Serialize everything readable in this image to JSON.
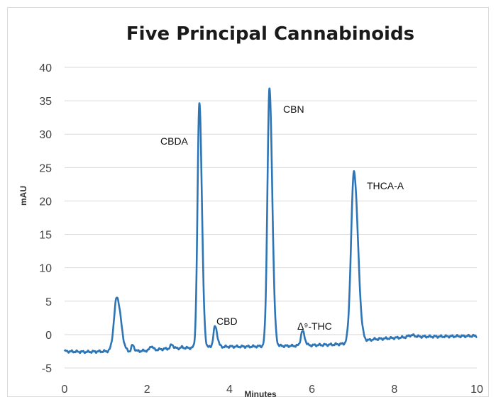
{
  "chart_data": {
    "type": "line",
    "title": "Five Principal Cannabinoids",
    "xlabel": "Minutes",
    "ylabel": "mAU",
    "xlim": [
      0,
      10
    ],
    "ylim": [
      -5,
      40
    ],
    "x_ticks": [
      0,
      2,
      4,
      6,
      8,
      10
    ],
    "y_ticks": [
      -5,
      0,
      5,
      10,
      15,
      20,
      25,
      30,
      35,
      40
    ],
    "grid": true,
    "series_color": "#2e75b6",
    "baseline": [
      [
        0,
        -2.5
      ],
      [
        0.5,
        -2.6
      ],
      [
        1.0,
        -2.5
      ],
      [
        1.4,
        -2.6
      ],
      [
        2.0,
        -2.4
      ],
      [
        2.5,
        -2.1
      ],
      [
        3.0,
        -2.0
      ],
      [
        3.5,
        -1.9
      ],
      [
        4.0,
        -1.8
      ],
      [
        4.5,
        -1.8
      ],
      [
        5.0,
        -1.7
      ],
      [
        5.5,
        -1.7
      ],
      [
        6.0,
        -1.6
      ],
      [
        6.5,
        -1.5
      ],
      [
        7.0,
        -1.3
      ],
      [
        7.5,
        -0.7
      ],
      [
        8.0,
        -0.5
      ],
      [
        8.5,
        -0.3
      ],
      [
        9.0,
        -0.3
      ],
      [
        10.0,
        -0.2
      ]
    ],
    "peaks": [
      {
        "x": 1.27,
        "height": 5.6,
        "width": 0.07,
        "label": ""
      },
      {
        "x": 1.65,
        "height": -1.6,
        "width": 0.03,
        "label": ""
      },
      {
        "x": 2.1,
        "height": -1.7,
        "width": 0.03,
        "label": ""
      },
      {
        "x": 2.6,
        "height": -1.5,
        "width": 0.03,
        "label": ""
      },
      {
        "x": 2.85,
        "height": -1.9,
        "width": 0.03,
        "label": ""
      },
      {
        "x": 3.27,
        "height": 34.7,
        "width": 0.045,
        "label": "CBDA"
      },
      {
        "x": 3.65,
        "height": 1.2,
        "width": 0.04,
        "label": "CBD"
      },
      {
        "x": 4.97,
        "height": 36.7,
        "width": 0.05,
        "label": "CBN"
      },
      {
        "x": 5.77,
        "height": 0.5,
        "width": 0.04,
        "label": "Δ⁹-THC"
      },
      {
        "x": 7.02,
        "height": 24.4,
        "width": 0.07,
        "label": "THCA-A"
      },
      {
        "x": 8.4,
        "height": -0.1,
        "width": 0.06,
        "label": ""
      }
    ]
  },
  "labels": {
    "cbda": "CBDA",
    "cbd": "CBD",
    "cbn": "CBN",
    "thc": "Δ⁹-THC",
    "thca": "THCA-A"
  }
}
